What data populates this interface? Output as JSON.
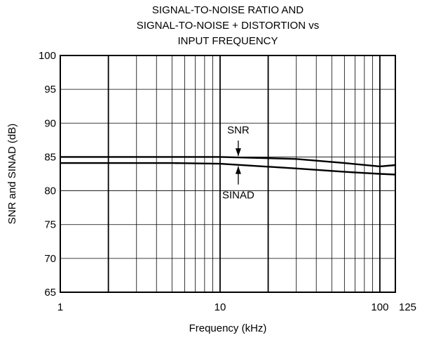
{
  "chart_data": {
    "type": "line",
    "title_lines": [
      "SIGNAL-TO-NOISE RATIO AND",
      "SIGNAL-TO-NOISE + DISTORTION vs",
      "INPUT FREQUENCY"
    ],
    "xlabel": "Frequency (kHz)",
    "ylabel": "SNR and SINAD (dB)",
    "xscale": "log",
    "xlim": [
      1,
      125
    ],
    "ylim": [
      65,
      100
    ],
    "xticks": [
      1,
      10,
      100,
      125
    ],
    "xtick_labels": [
      "1",
      "10",
      "100",
      "125"
    ],
    "yticks": [
      65,
      70,
      75,
      80,
      85,
      90,
      95,
      100
    ],
    "ytick_labels": [
      "65",
      "70",
      "75",
      "80",
      "85",
      "90",
      "95",
      "100"
    ],
    "grid": true,
    "series": [
      {
        "name": "SNR",
        "x": [
          1,
          5,
          10,
          30,
          60,
          100,
          125
        ],
        "y": [
          85,
          85,
          85,
          84.7,
          84.1,
          83.6,
          83.8
        ]
      },
      {
        "name": "SINAD",
        "x": [
          1,
          5,
          10,
          30,
          60,
          100,
          125
        ],
        "y": [
          84.1,
          84.1,
          84.0,
          83.3,
          82.8,
          82.5,
          82.4
        ]
      }
    ],
    "annotations": [
      {
        "text": "SNR",
        "series": "SNR",
        "arrow": "down"
      },
      {
        "text": "SINAD",
        "series": "SINAD",
        "arrow": "up"
      }
    ]
  }
}
